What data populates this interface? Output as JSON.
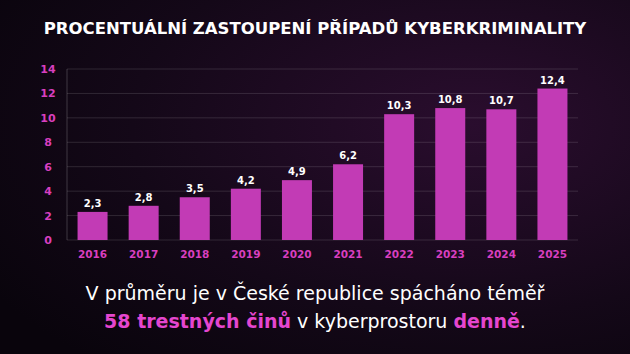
{
  "chart_data": {
    "type": "bar",
    "title": "PROCENTUÁLNÍ ZASTOUPENÍ PŘÍPADŮ KYBERKRIMINALITY",
    "categories": [
      "2016",
      "2017",
      "2018",
      "2019",
      "2020",
      "2021",
      "2022",
      "2023",
      "2024",
      "2025"
    ],
    "values": [
      2.3,
      2.8,
      3.5,
      4.2,
      4.9,
      6.2,
      10.3,
      10.8,
      10.7,
      12.4
    ],
    "value_labels": [
      "2,3",
      "2,8",
      "3,5",
      "4,2",
      "4,9",
      "6,2",
      "10,3",
      "10,8",
      "10,7",
      "12,4"
    ],
    "color": "#c23bb5",
    "ylim": [
      0,
      14
    ],
    "yticks": [
      0,
      2,
      4,
      6,
      8,
      10,
      12,
      14
    ],
    "grid": true,
    "data_labels": true,
    "annotation": {
      "lines": [
        [
          {
            "text": "V průměru je v České republice spácháno téměř"
          }
        ],
        [
          {
            "text": "58 trestných činů",
            "color": "#e546cf"
          },
          {
            "text": " v kyberprostoru "
          },
          {
            "text": "denně",
            "color": "#e546cf"
          },
          {
            "text": "."
          }
        ]
      ]
    }
  }
}
